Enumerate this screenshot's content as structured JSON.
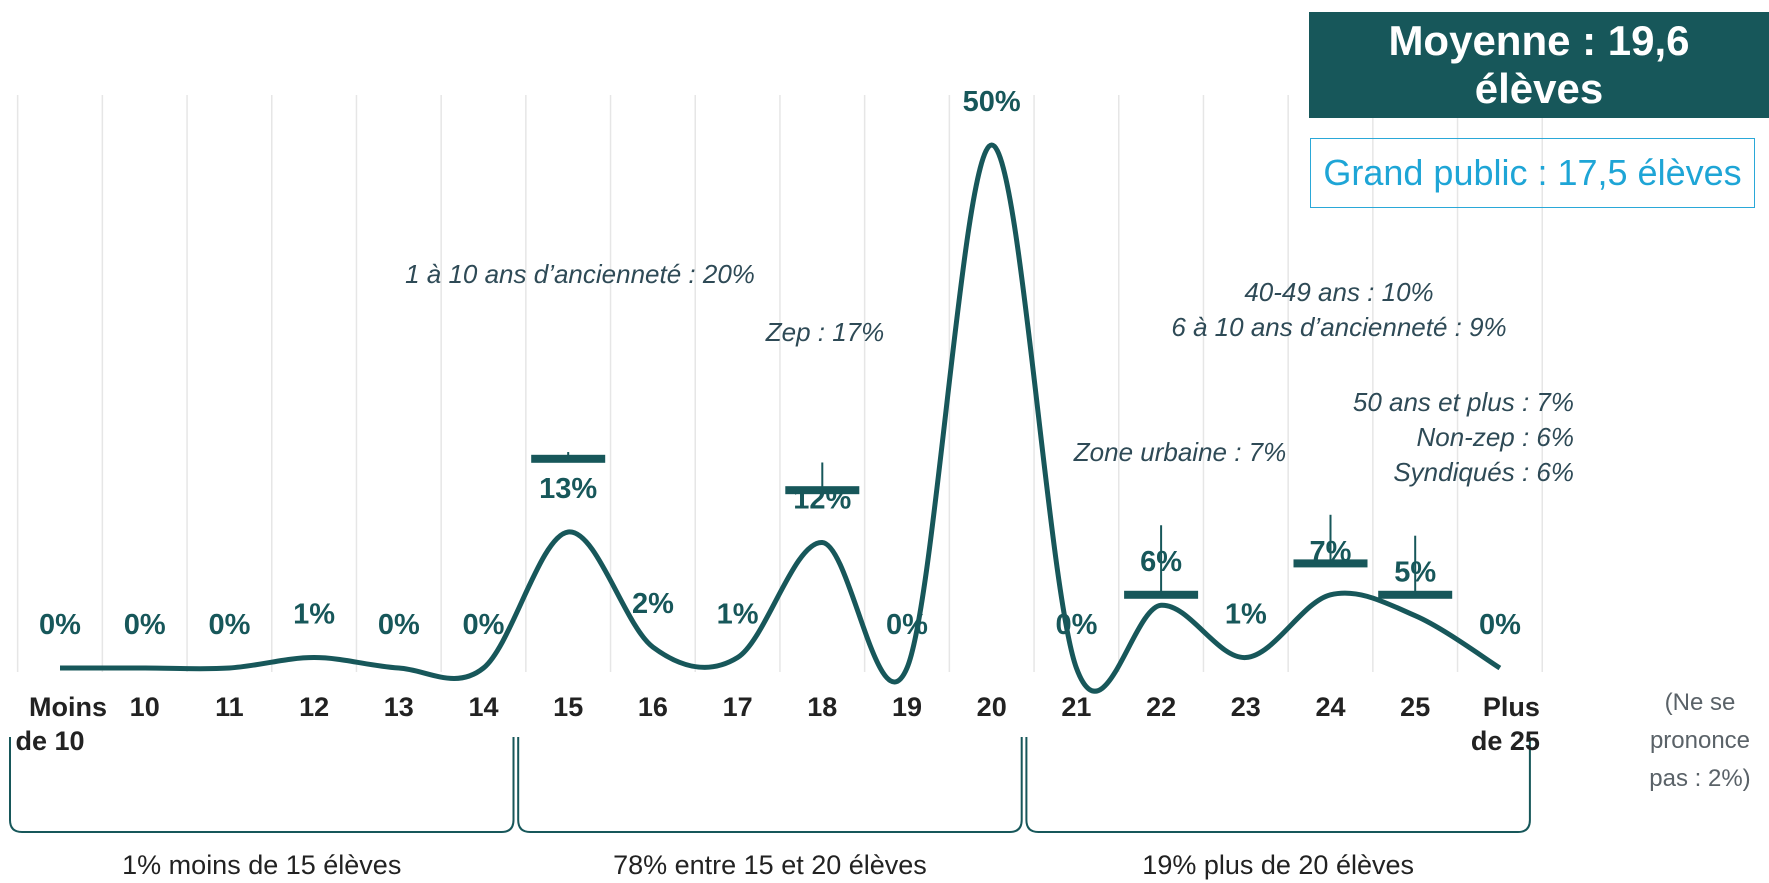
{
  "summary": {
    "mean_label": "Moyenne : 19,6 élèves",
    "general_public_label": "Grand public : 17,5 élèves"
  },
  "non_response": [
    "(Ne se",
    "prononce",
    "pas : 2%)"
  ],
  "groups": [
    {
      "label": "1% moins de 15 élèves",
      "from": "Moins de 10",
      "to": "14"
    },
    {
      "label": "78% entre 15 et 20 élèves",
      "from": "15",
      "to": "20"
    },
    {
      "label": "19% plus de 20 élèves",
      "from": "21",
      "to": "Plus de 25"
    }
  ],
  "annotations": [
    {
      "category": "15",
      "lines": [
        "1 à 10 ans d’ancienneté : 20%"
      ],
      "value": 20
    },
    {
      "category": "18",
      "lines": [
        "Zep : 17%"
      ],
      "value": 17
    },
    {
      "category": "22",
      "lines": [
        "Zone urbaine : 7%"
      ],
      "value": 7
    },
    {
      "category": "24",
      "lines": [
        "40-49 ans : 10%",
        "6 à 10 ans d’ancienneté : 9%"
      ],
      "value": 10
    },
    {
      "category": "25",
      "lines": [
        "50 ans et plus : 7%",
        "Non-zep : 6%",
        "Syndiqués : 6%"
      ],
      "value": 7
    }
  ],
  "colors": {
    "series": "#17575a",
    "annotation_text": "#2e4a56",
    "grid": "#e6e6e6",
    "accent_blue": "#1ea5d6",
    "note": "#5a6268"
  },
  "chart_data": {
    "type": "line",
    "smooth": true,
    "categories": [
      [
        "Moins",
        "de 10"
      ],
      [
        "10"
      ],
      [
        "11"
      ],
      [
        "12"
      ],
      [
        "13"
      ],
      [
        "14"
      ],
      [
        "15"
      ],
      [
        "16"
      ],
      [
        "17"
      ],
      [
        "18"
      ],
      [
        "19"
      ],
      [
        "20"
      ],
      [
        "21"
      ],
      [
        "22"
      ],
      [
        "23"
      ],
      [
        "24"
      ],
      [
        "25"
      ],
      [
        "Plus",
        "de 25"
      ]
    ],
    "values": [
      0,
      0,
      0,
      1,
      0,
      0,
      13,
      2,
      1,
      12,
      0,
      50,
      0,
      6,
      1,
      7,
      5,
      0
    ],
    "data_labels": [
      "0%",
      "0%",
      "0%",
      "1%",
      "0%",
      "0%",
      "13%",
      "2%",
      "1%",
      "12%",
      "0%",
      "50%",
      "0%",
      "6%",
      "1%",
      "7%",
      "5%",
      "0%"
    ],
    "ylim": [
      0,
      50
    ],
    "grid": "vertical",
    "legend": "none"
  }
}
